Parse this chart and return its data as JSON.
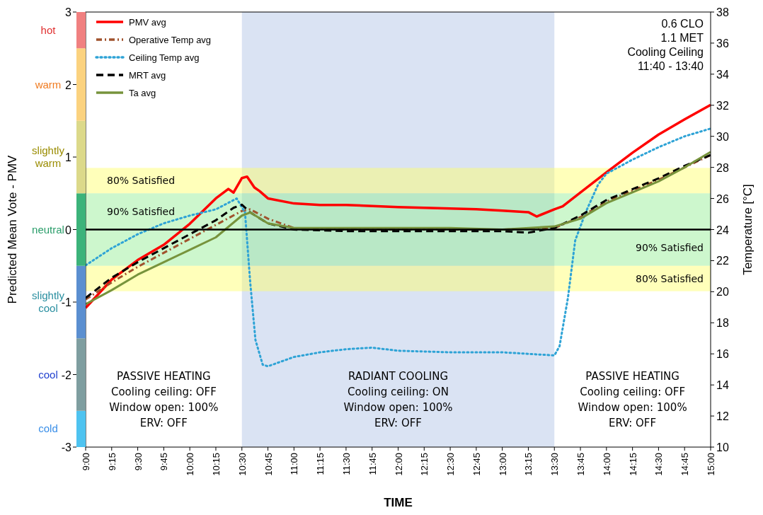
{
  "chart_data": {
    "type": "line",
    "xlabel": "TIME",
    "ylabel": "Predicted Mean Vote - PMV",
    "y2label": "Temperature [°C]",
    "xlim": [
      9,
      15
    ],
    "xticks": [
      {
        "value": 9,
        "label": "9:00"
      },
      {
        "value": 9.25,
        "label": "9:15"
      },
      {
        "value": 9.5,
        "label": "9:30"
      },
      {
        "value": 9.75,
        "label": "9:45"
      },
      {
        "value": 10,
        "label": "10:00"
      },
      {
        "value": 10.25,
        "label": "10:15"
      },
      {
        "value": 10.5,
        "label": "10:30"
      },
      {
        "value": 10.75,
        "label": "10:45"
      },
      {
        "value": 11,
        "label": "11:00"
      },
      {
        "value": 11.25,
        "label": "11:15"
      },
      {
        "value": 11.5,
        "label": "11:30"
      },
      {
        "value": 11.75,
        "label": "11:45"
      },
      {
        "value": 12,
        "label": "12:00"
      },
      {
        "value": 12.25,
        "label": "12:15"
      },
      {
        "value": 12.5,
        "label": "12:30"
      },
      {
        "value": 12.75,
        "label": "12:45"
      },
      {
        "value": 13,
        "label": "13:00"
      },
      {
        "value": 13.25,
        "label": "13:15"
      },
      {
        "value": 13.5,
        "label": "13:30"
      },
      {
        "value": 13.75,
        "label": "13:45"
      },
      {
        "value": 14,
        "label": "14:00"
      },
      {
        "value": 14.25,
        "label": "14:15"
      },
      {
        "value": 14.5,
        "label": "14:30"
      },
      {
        "value": 14.75,
        "label": "14:45"
      },
      {
        "value": 15,
        "label": "15:00"
      }
    ],
    "ylim": [
      -3,
      3
    ],
    "yticks": [
      -3,
      -2,
      -1,
      0,
      1,
      2,
      3
    ],
    "y2lim": [
      10,
      38
    ],
    "y2ticks": [
      10,
      12,
      14,
      16,
      18,
      20,
      22,
      24,
      26,
      28,
      30,
      32,
      34,
      36,
      38
    ],
    "grid": false,
    "legend": "top left",
    "marker": "none",
    "annotations": [
      "0.6 CLO\n1.1 MET\nCooling Ceiling\n11:40 - 13:40",
      "PASSIVE HEATING\nCooling ceiling: OFF\nWindow open: 100%\nERV: OFF",
      "PASSIVE HEATING\nCooling ceiling: OFF\nWindow open: 100%\nERV: OFF",
      "hot",
      "warm",
      "slightly warm",
      "neutral",
      "slightly cool",
      "cool",
      "cold"
    ],
    "ref_lines": [
      {
        "axis": "y",
        "value": 0,
        "color": "#000000"
      }
    ],
    "bands": [
      {
        "axis": "x",
        "from": 10.5,
        "to": 13.5,
        "label": "RADIANT COOLING\nCooling ceiling: ON\nWindow open: 100%\nERV: OFF",
        "color": "#dae3f3"
      },
      {
        "axis": "y",
        "from": 0.5,
        "to": 0.85,
        "label": "80% Satisfied",
        "color": "#ffff66"
      },
      {
        "axis": "y",
        "from": 0,
        "to": 0.5,
        "label": "90% Satisfied",
        "color": "#90ee90"
      },
      {
        "axis": "y",
        "from": -0.5,
        "to": 0,
        "label": "90% Satisfied",
        "color": "#90ee90"
      },
      {
        "axis": "y",
        "from": -0.85,
        "to": -0.5,
        "label": "80% Satisfied",
        "color": "#ffff66"
      }
    ],
    "series": [
      {
        "name": "PMV avg",
        "color": "#ff0000",
        "line_style": "solid",
        "x": [
          9,
          9.25,
          9.5,
          9.75,
          10,
          10.25,
          10.37,
          10.42,
          10.5,
          10.55,
          10.62,
          10.67,
          10.75,
          11,
          11.25,
          11.5,
          12,
          12.5,
          12.75,
          13,
          13.25,
          13.33,
          13.5,
          13.58,
          13.75,
          14,
          14.25,
          14.5,
          14.75,
          15
        ],
        "values": [
          -1.08,
          -0.69,
          -0.42,
          -0.21,
          0.08,
          0.43,
          0.56,
          0.51,
          0.71,
          0.73,
          0.58,
          0.53,
          0.43,
          0.36,
          0.34,
          0.34,
          0.31,
          0.29,
          0.28,
          0.26,
          0.24,
          0.18,
          0.28,
          0.32,
          0.51,
          0.79,
          1.06,
          1.31,
          1.52,
          1.72
        ]
      },
      {
        "name": "Operative Temp avg",
        "color": "#a0522d",
        "line_style": "dashdot",
        "axis": "y2",
        "x": [
          9,
          9.25,
          9.5,
          9.75,
          10,
          10.25,
          10.5,
          10.58,
          10.75,
          11,
          11.5,
          12,
          12.5,
          13,
          13.5,
          13.75,
          14,
          14.5,
          15
        ],
        "values": [
          19.5,
          20.6,
          21.6,
          22.5,
          23.4,
          24.3,
          25.2,
          25.3,
          24.7,
          24.1,
          24.0,
          24.0,
          24.0,
          24.0,
          24.1,
          24.8,
          25.8,
          27.2,
          28.8
        ]
      },
      {
        "name": "Ceiling Temp avg",
        "color": "#2ea3d6",
        "line_style": "dotted",
        "axis": "y2",
        "x": [
          9,
          9.25,
          9.5,
          9.75,
          10,
          10.25,
          10.45,
          10.53,
          10.58,
          10.63,
          10.7,
          10.75,
          11,
          11.25,
          11.5,
          11.75,
          12,
          12.5,
          13,
          13.25,
          13.5,
          13.55,
          13.63,
          13.7,
          13.8,
          13.92,
          14,
          14.25,
          14.5,
          14.75,
          15
        ],
        "values": [
          21.7,
          22.8,
          23.7,
          24.4,
          24.9,
          25.3,
          26.0,
          25.1,
          20.6,
          16.9,
          15.3,
          15.2,
          15.8,
          16.1,
          16.3,
          16.4,
          16.2,
          16.1,
          16.1,
          16.0,
          15.9,
          16.5,
          19.6,
          23.3,
          25.1,
          26.9,
          27.6,
          28.5,
          29.3,
          30.0,
          30.5
        ]
      },
      {
        "name": "MRT avg",
        "color": "#000000",
        "line_style": "dashed",
        "axis": "y2",
        "x": [
          9,
          9.25,
          9.5,
          9.75,
          10,
          10.25,
          10.42,
          10.5,
          10.58,
          10.75,
          11,
          11.5,
          12,
          12.5,
          13,
          13.25,
          13.5,
          13.75,
          14,
          14.25,
          14.5,
          14.75,
          15
        ],
        "values": [
          19.6,
          20.9,
          21.9,
          22.8,
          23.7,
          24.6,
          25.4,
          25.6,
          25.1,
          24.4,
          24.0,
          23.9,
          23.9,
          23.9,
          23.9,
          23.8,
          24.1,
          24.9,
          25.9,
          26.6,
          27.3,
          28.1,
          28.8
        ]
      },
      {
        "name": "Ta avg",
        "color": "#77933c",
        "line_style": "solid",
        "axis": "y2",
        "x": [
          9,
          9.25,
          9.5,
          9.75,
          10,
          10.25,
          10.5,
          10.58,
          10.75,
          11,
          11.5,
          12,
          12.5,
          13,
          13.5,
          13.75,
          14,
          14.25,
          14.5,
          14.75,
          15
        ],
        "values": [
          19.2,
          20.1,
          21.1,
          21.9,
          22.7,
          23.5,
          24.9,
          25.1,
          24.4,
          24.1,
          24.1,
          24.1,
          24.1,
          24.0,
          24.2,
          24.7,
          25.7,
          26.4,
          27.1,
          28.0,
          29.0
        ]
      }
    ]
  }
}
